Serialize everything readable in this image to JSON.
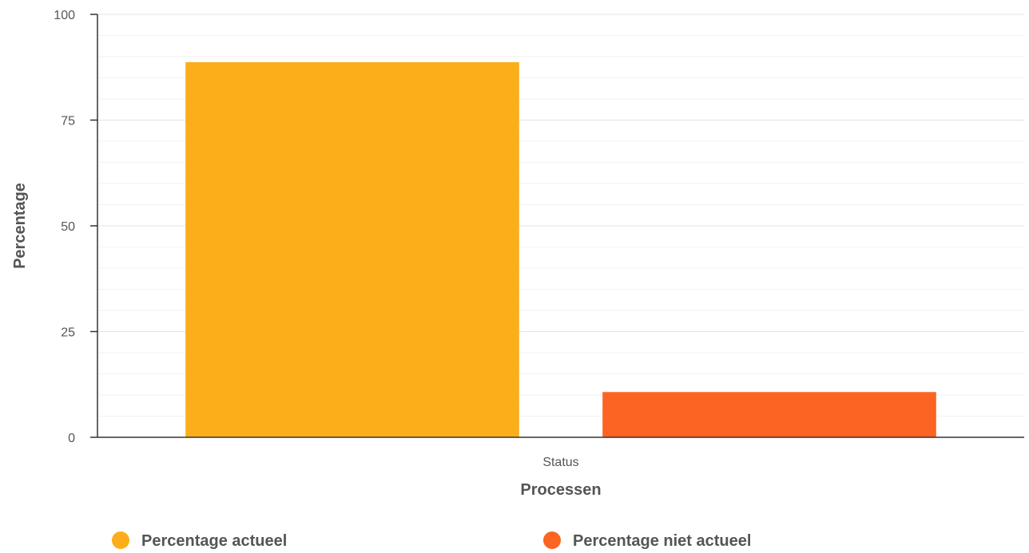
{
  "chart_data": {
    "type": "bar",
    "categories": [
      "Status"
    ],
    "series": [
      {
        "name": "Percentage actueel",
        "values": [
          88.7
        ],
        "color": "#FBAE1A"
      },
      {
        "name": "Percentage niet actueel",
        "values": [
          10.7
        ],
        "color": "#FC6421"
      }
    ],
    "xlabel": "Processen",
    "ylabel": "Percentage",
    "ylim": [
      0,
      100
    ],
    "yticks": [
      0,
      25,
      50,
      75,
      100
    ],
    "grid": true,
    "legend_position": "bottom"
  }
}
